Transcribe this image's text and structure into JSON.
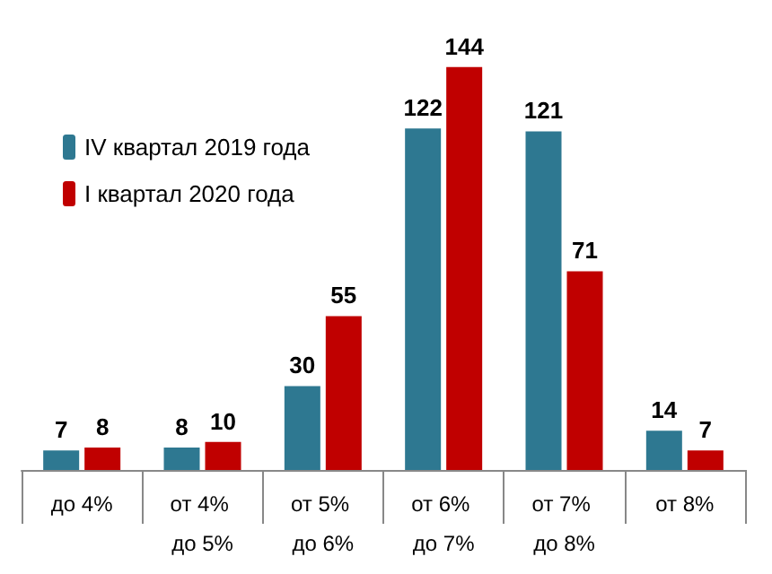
{
  "chart_data": {
    "type": "bar",
    "categories": [
      "до 4%",
      "от 4% до 5%",
      "от 5% до 6%",
      "от 6% до 7%",
      "от 7% до 8%",
      "от 8%"
    ],
    "series": [
      {
        "name": "IV квартал 2019 года",
        "color": "#2e7891",
        "values": [
          7,
          8,
          30,
          122,
          121,
          14
        ]
      },
      {
        "name": "I квартал 2020 года",
        "color": "#c00000",
        "values": [
          8,
          10,
          55,
          144,
          71,
          7
        ]
      }
    ],
    "data_labels": true,
    "legend": "top left"
  }
}
